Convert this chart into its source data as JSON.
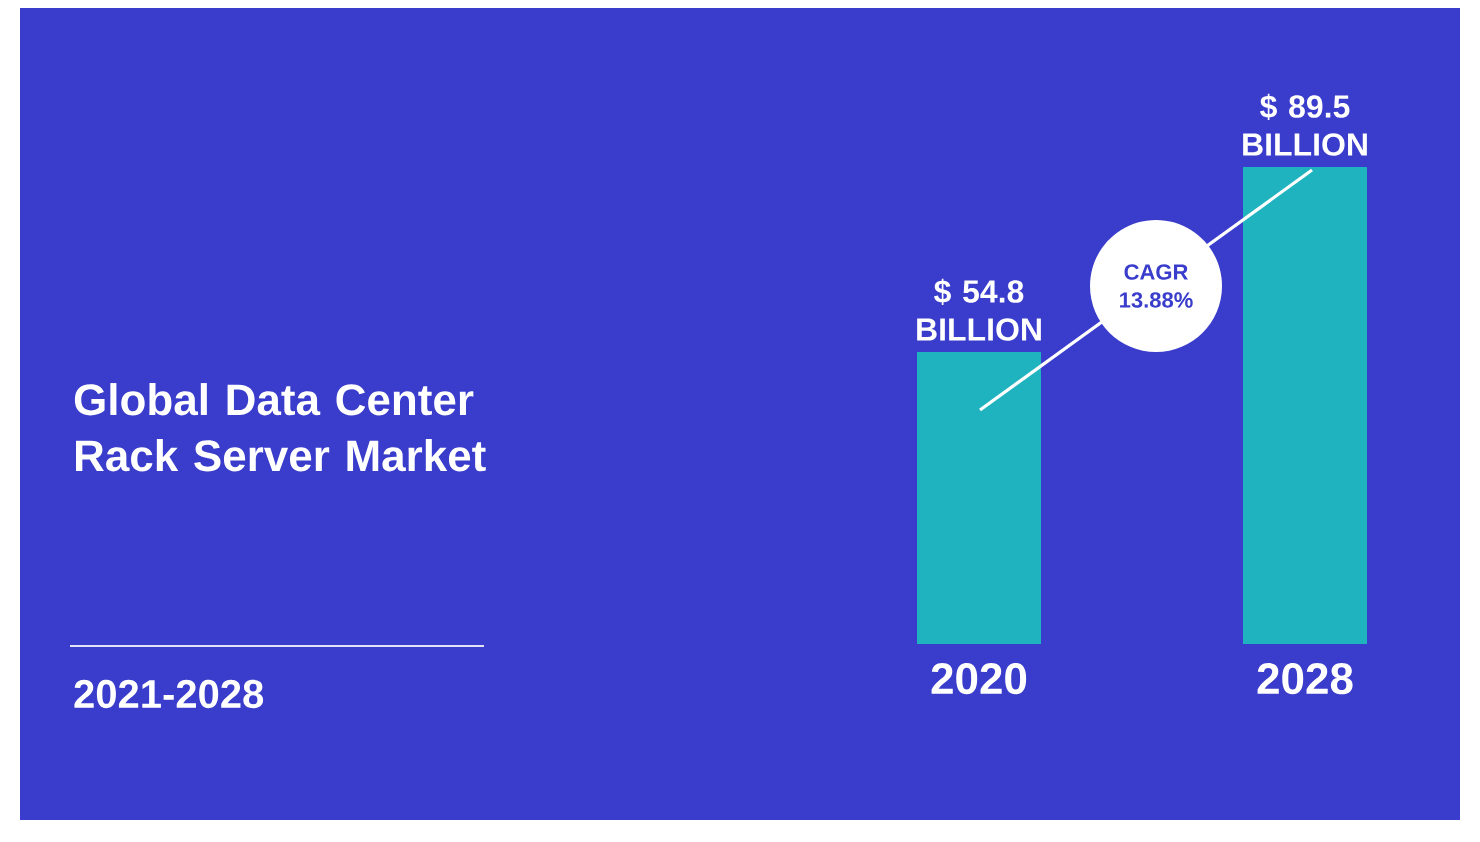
{
  "chart_data": {
    "type": "bar",
    "title": "Global Data Center Rack Server Market",
    "subtitle": "2021-2028",
    "categories": [
      "2020",
      "2028"
    ],
    "values": [
      54.8,
      89.5
    ],
    "color": "#1fb3bf",
    "value_labels": [
      "$ 54.8 BILLION",
      "$ 89.5 BILLION"
    ],
    "annotations": [
      "CAGR 13.88%"
    ]
  }
}
